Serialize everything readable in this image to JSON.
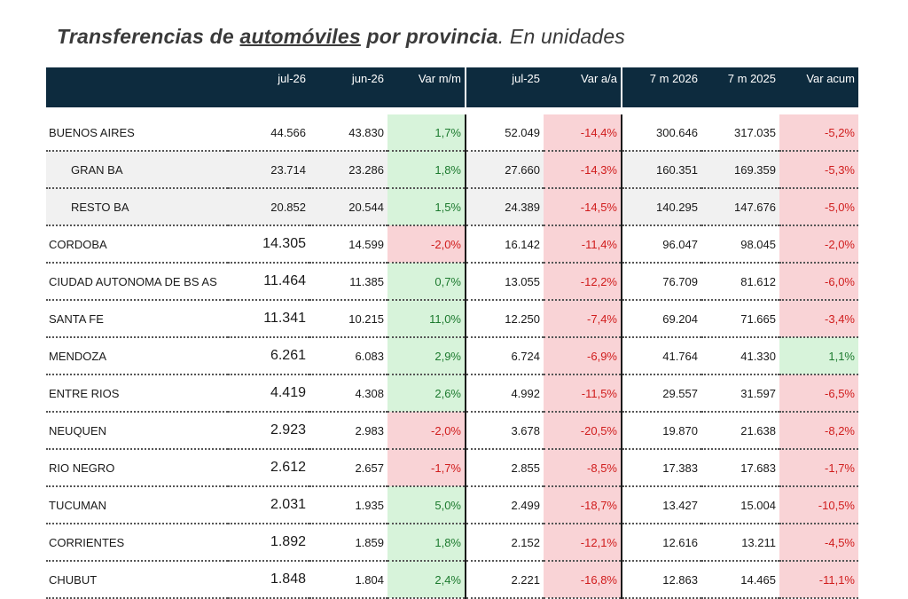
{
  "title": {
    "part1": "Transferencias de ",
    "part2": "automóviles",
    "part3": " por provincia",
    "part4": ". En unidades"
  },
  "columns": [
    "",
    "jul-26",
    "jun-26",
    "Var m/m",
    "jul-25",
    "Var a/a",
    "7 m 2026",
    "7 m 2025",
    "Var acum"
  ],
  "rows": [
    {
      "name": "BUENOS AIRES",
      "jul26": "44.566",
      "jun26": "43.830",
      "var_mm": "1,7%",
      "jul25": "52.049",
      "var_aa": "-14,4%",
      "m2026": "300.646",
      "m2025": "317.035",
      "var_acum": "-5,2%"
    },
    {
      "name": "GRAN BA",
      "jul26": "23.714",
      "jun26": "23.286",
      "var_mm": "1,8%",
      "jul25": "27.660",
      "var_aa": "-14,3%",
      "m2026": "160.351",
      "m2025": "169.359",
      "var_acum": "-5,3%"
    },
    {
      "name": "RESTO BA",
      "jul26": "20.852",
      "jun26": "20.544",
      "var_mm": "1,5%",
      "jul25": "24.389",
      "var_aa": "-14,5%",
      "m2026": "140.295",
      "m2025": "147.676",
      "var_acum": "-5,0%"
    },
    {
      "name": "CORDOBA",
      "jul26": "14.305",
      "jun26": "14.599",
      "var_mm": "-2,0%",
      "jul25": "16.142",
      "var_aa": "-11,4%",
      "m2026": "96.047",
      "m2025": "98.045",
      "var_acum": "-2,0%"
    },
    {
      "name": "CIUDAD AUTONOMA DE BS AS",
      "jul26": "11.464",
      "jun26": "11.385",
      "var_mm": "0,7%",
      "jul25": "13.055",
      "var_aa": "-12,2%",
      "m2026": "76.709",
      "m2025": "81.612",
      "var_acum": "-6,0%"
    },
    {
      "name": "SANTA FE",
      "jul26": "11.341",
      "jun26": "10.215",
      "var_mm": "11,0%",
      "jul25": "12.250",
      "var_aa": "-7,4%",
      "m2026": "69.204",
      "m2025": "71.665",
      "var_acum": "-3,4%"
    },
    {
      "name": "MENDOZA",
      "jul26": "6.261",
      "jun26": "6.083",
      "var_mm": "2,9%",
      "jul25": "6.724",
      "var_aa": "-6,9%",
      "m2026": "41.764",
      "m2025": "41.330",
      "var_acum": "1,1%"
    },
    {
      "name": "ENTRE RIOS",
      "jul26": "4.419",
      "jun26": "4.308",
      "var_mm": "2,6%",
      "jul25": "4.992",
      "var_aa": "-11,5%",
      "m2026": "29.557",
      "m2025": "31.597",
      "var_acum": "-6,5%"
    },
    {
      "name": "NEUQUEN",
      "jul26": "2.923",
      "jun26": "2.983",
      "var_mm": "-2,0%",
      "jul25": "3.678",
      "var_aa": "-20,5%",
      "m2026": "19.870",
      "m2025": "21.638",
      "var_acum": "-8,2%"
    },
    {
      "name": "RIO NEGRO",
      "jul26": "2.612",
      "jun26": "2.657",
      "var_mm": "-1,7%",
      "jul25": "2.855",
      "var_aa": "-8,5%",
      "m2026": "17.383",
      "m2025": "17.683",
      "var_acum": "-1,7%"
    },
    {
      "name": "TUCUMAN",
      "jul26": "2.031",
      "jun26": "1.935",
      "var_mm": "5,0%",
      "jul25": "2.499",
      "var_aa": "-18,7%",
      "m2026": "13.427",
      "m2025": "15.004",
      "var_acum": "-10,5%"
    },
    {
      "name": "CORRIENTES",
      "jul26": "1.892",
      "jun26": "1.859",
      "var_mm": "1,8%",
      "jul25": "2.152",
      "var_aa": "-12,1%",
      "m2026": "12.616",
      "m2025": "13.211",
      "var_acum": "-4,5%"
    },
    {
      "name": "CHUBUT",
      "jul26": "1.848",
      "jun26": "1.804",
      "var_mm": "2,4%",
      "jul25": "2.221",
      "var_aa": "-16,8%",
      "m2026": "12.863",
      "m2025": "14.465",
      "var_acum": "-11,1%"
    }
  ],
  "colors": {
    "header_bg": "#0d2b3e",
    "positive_bg": "#d7f3da",
    "positive_text": "#1c7a2e",
    "negative_bg": "#f9d3d6",
    "negative_text": "#d01c1c",
    "subrow_bg": "#f1f1f1"
  }
}
